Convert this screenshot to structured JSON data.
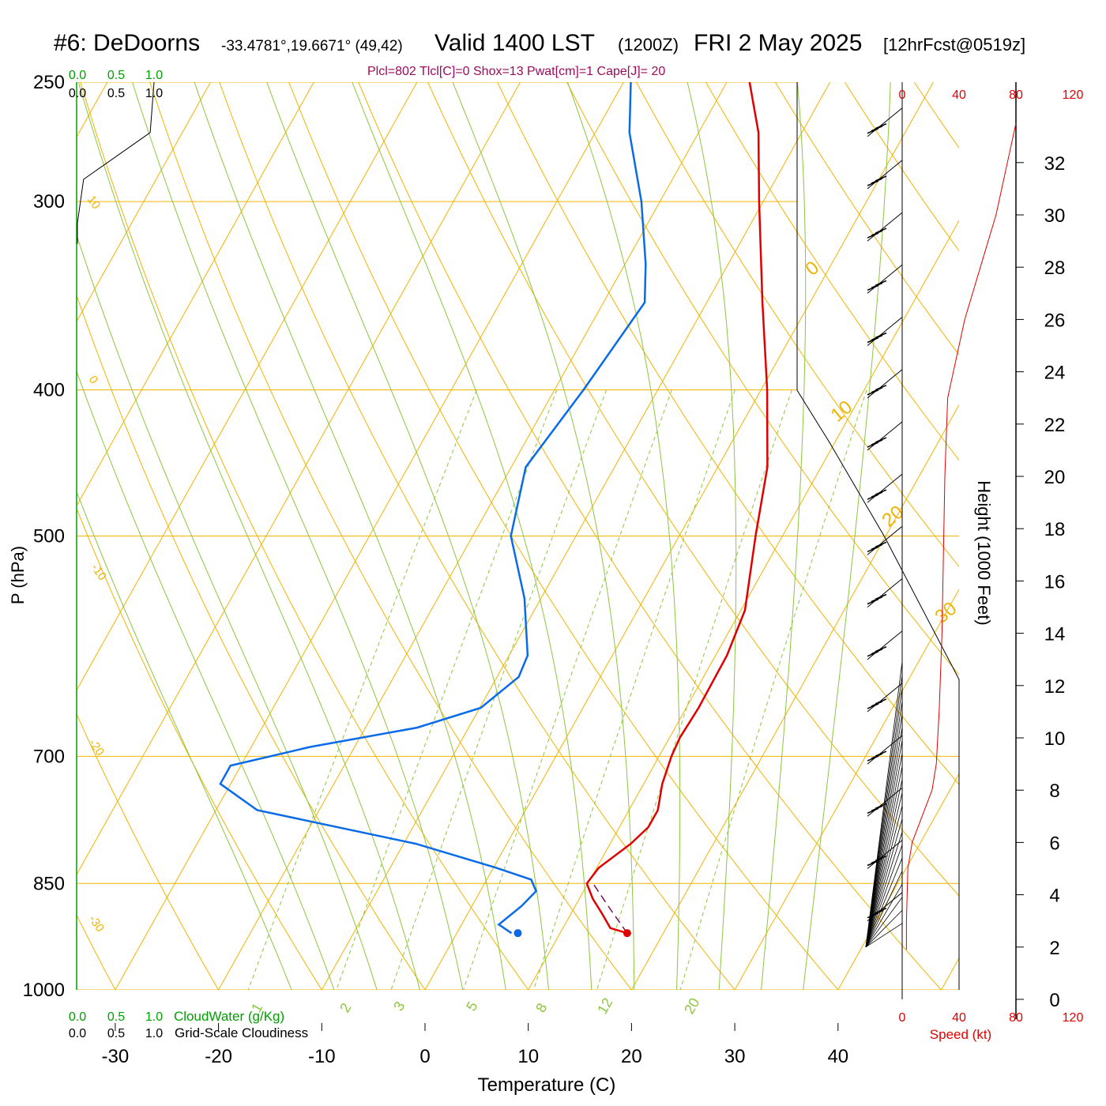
{
  "header": {
    "station": "#6: DeDoorns",
    "coords": "-33.4781°,19.6671° (49,42)",
    "valid": "Valid 1400 LST",
    "zulu": "(1200Z)",
    "date": "FRI 2 May 2025",
    "forecast": "[12hrFcst@0519z]",
    "params": "Plcl=802 Tlcl[C]=0 Shox=13 Pwat[cm]=1 Cape[J]= 20"
  },
  "colors": {
    "temperature": "#e00000",
    "dewpoint": "#0a6be8",
    "isotherm": "#f0b400",
    "dry_adiabat": "#f0b400",
    "moist_adiabat": "#8cc63f",
    "mixing_ratio": "#8cc63f",
    "parcel": "#7a0b5a",
    "cloud_water": "#00a000",
    "wind_speed": "#e00000"
  },
  "chart_data": {
    "type": "skew-t",
    "xlabel": "Temperature (C)",
    "ylabel": "P (hPa)",
    "right_axis_label": "Height (1000 Feet)",
    "x_ticks": [
      -30,
      -20,
      -10,
      0,
      10,
      20,
      30,
      40
    ],
    "pressure_ticks": [
      250,
      300,
      400,
      500,
      700,
      850,
      1000
    ],
    "height_ticks": [
      0,
      2,
      4,
      6,
      8,
      10,
      12,
      14,
      16,
      18,
      20,
      22,
      24,
      26,
      28,
      30,
      32
    ],
    "speed_ticks": [
      0,
      40,
      80,
      120
    ],
    "speed_label": "Speed (kt)",
    "cloud_ticks": [
      "0.0",
      "0.5",
      "1.0"
    ],
    "cloud_water_label": "CloudWater (g/Kg)",
    "cloudiness_label": "Grid-Scale Cloudiness",
    "dry_adiabat_labels": [
      "-30",
      "-20",
      "-10",
      "0",
      "10",
      "20",
      "30"
    ],
    "moist_adiabat_labels": [
      "0",
      "10",
      "20",
      "30"
    ],
    "mixing_ratio_labels": [
      "1",
      "2",
      "3",
      "5",
      "8",
      "12",
      "20"
    ],
    "temperature_profile": [
      {
        "p": 917,
        "t": 16.5
      },
      {
        "p": 910,
        "t": 14.6
      },
      {
        "p": 890,
        "t": 13.0
      },
      {
        "p": 870,
        "t": 11.3
      },
      {
        "p": 850,
        "t": 9.9
      },
      {
        "p": 830,
        "t": 10.2
      },
      {
        "p": 800,
        "t": 12.0
      },
      {
        "p": 780,
        "t": 12.8
      },
      {
        "p": 760,
        "t": 12.8
      },
      {
        "p": 730,
        "t": 11.8
      },
      {
        "p": 700,
        "t": 11.2
      },
      {
        "p": 680,
        "t": 11.0
      },
      {
        "p": 650,
        "t": 11.2
      },
      {
        "p": 600,
        "t": 11.1
      },
      {
        "p": 560,
        "t": 10.4
      },
      {
        "p": 500,
        "t": 7.4
      },
      {
        "p": 450,
        "t": 4.8
      },
      {
        "p": 400,
        "t": 0.6
      },
      {
        "p": 350,
        "t": -4.6
      },
      {
        "p": 300,
        "t": -10.4
      },
      {
        "p": 270,
        "t": -14.2
      },
      {
        "p": 250,
        "t": -17.8
      }
    ],
    "dewpoint_profile": [
      {
        "p": 917,
        "t": 5.3
      },
      {
        "p": 905,
        "t": 3.6
      },
      {
        "p": 880,
        "t": 4.8
      },
      {
        "p": 860,
        "t": 5.4
      },
      {
        "p": 845,
        "t": 4.3
      },
      {
        "p": 830,
        "t": 0.3
      },
      {
        "p": 800,
        "t": -8.8
      },
      {
        "p": 760,
        "t": -26.0
      },
      {
        "p": 730,
        "t": -31.0
      },
      {
        "p": 710,
        "t": -31.0
      },
      {
        "p": 690,
        "t": -24.3
      },
      {
        "p": 670,
        "t": -15.0
      },
      {
        "p": 650,
        "t": -9.9
      },
      {
        "p": 620,
        "t": -7.9
      },
      {
        "p": 600,
        "t": -8.2
      },
      {
        "p": 550,
        "t": -11.6
      },
      {
        "p": 500,
        "t": -16.3
      },
      {
        "p": 450,
        "t": -18.6
      },
      {
        "p": 400,
        "t": -17.2
      },
      {
        "p": 350,
        "t": -16.0
      },
      {
        "p": 330,
        "t": -18.0
      },
      {
        "p": 300,
        "t": -21.8
      },
      {
        "p": 270,
        "t": -26.7
      },
      {
        "p": 250,
        "t": -29.3
      }
    ],
    "parcel_profile": [
      {
        "p": 917,
        "t": 16.5
      },
      {
        "p": 880,
        "t": 13.2
      },
      {
        "p": 850,
        "t": 10.5
      }
    ],
    "surface_points": {
      "temperature": 16.5,
      "dewpoint": 5.3,
      "p": 917
    },
    "wind_speed_profile": [
      {
        "height_kft": 1.9,
        "speed_kt": 3
      },
      {
        "height_kft": 3,
        "speed_kt": 3
      },
      {
        "height_kft": 5,
        "speed_kt": 4
      },
      {
        "height_kft": 6,
        "speed_kt": 7
      },
      {
        "height_kft": 7,
        "speed_kt": 14
      },
      {
        "height_kft": 8,
        "speed_kt": 21
      },
      {
        "height_kft": 9,
        "speed_kt": 24
      },
      {
        "height_kft": 11,
        "speed_kt": 26
      },
      {
        "height_kft": 14,
        "speed_kt": 28
      },
      {
        "height_kft": 17,
        "speed_kt": 29
      },
      {
        "height_kft": 20,
        "speed_kt": 30
      },
      {
        "height_kft": 23,
        "speed_kt": 32
      },
      {
        "height_kft": 26,
        "speed_kt": 44
      },
      {
        "height_kft": 28,
        "speed_kt": 55
      },
      {
        "height_kft": 30,
        "speed_kt": 66
      },
      {
        "height_kft": 32,
        "speed_kt": 74
      },
      {
        "height_kft": 33.5,
        "speed_kt": 80
      }
    ],
    "cloudiness_profile": [
      {
        "p": 250,
        "v": 1.0
      },
      {
        "p": 270,
        "v": 0.95
      },
      {
        "p": 290,
        "v": 0.08
      },
      {
        "p": 310,
        "v": 0.0
      },
      {
        "p": 320,
        "v": 0.0
      }
    ],
    "wind_barbs_kft": [
      33,
      31,
      29,
      27,
      25,
      23,
      21,
      19,
      17,
      15,
      13,
      11,
      9,
      7,
      5,
      3
    ]
  }
}
